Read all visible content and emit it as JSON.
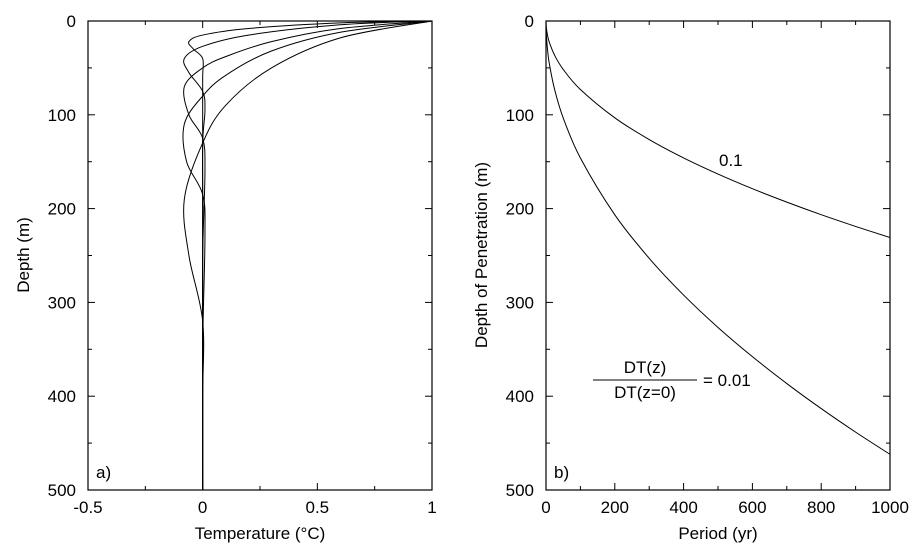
{
  "chart_data": [
    {
      "type": "line",
      "panel_label": "a)",
      "xlabel": "Temperature (°C)",
      "ylabel": "Depth (m)",
      "xlim": [
        -0.5,
        1
      ],
      "ylim": [
        0,
        500
      ],
      "y_inverted": true,
      "xticks": [
        "-0.5",
        "0",
        "0.5",
        "1"
      ],
      "yticks": [
        "0",
        "100",
        "200",
        "300",
        "400",
        "500"
      ],
      "grid": false,
      "series": [
        {
          "x": [
            1,
            0.6,
            0.2,
            0.0,
            -0.06,
            -0.04,
            0.0,
            0.0,
            0.0,
            0.0,
            0.0,
            0.0
          ],
          "y": [
            0,
            2,
            8,
            15,
            22,
            30,
            40,
            60,
            100,
            200,
            350,
            500
          ]
        },
        {
          "x": [
            1,
            0.6,
            0.2,
            0.0,
            -0.08,
            -0.06,
            0.0,
            0.01,
            0.0,
            0.0,
            0.0,
            0.0
          ],
          "y": [
            0,
            4,
            15,
            27,
            40,
            55,
            75,
            95,
            130,
            200,
            350,
            500
          ]
        },
        {
          "x": [
            1,
            0.6,
            0.3,
            0.1,
            0.0,
            -0.08,
            -0.06,
            0.0,
            0.01,
            0.0,
            0.0,
            0.0
          ],
          "y": [
            0,
            8,
            22,
            38,
            50,
            70,
            100,
            125,
            160,
            250,
            350,
            500
          ]
        },
        {
          "x": [
            1,
            0.6,
            0.3,
            0.1,
            0.0,
            -0.08,
            -0.07,
            0.0,
            0.01,
            0.0,
            0.0
          ],
          "y": [
            0,
            12,
            32,
            58,
            80,
            110,
            150,
            185,
            230,
            350,
            500
          ]
        },
        {
          "x": [
            1,
            0.6,
            0.3,
            0.1,
            0.0,
            -0.08,
            -0.06,
            0.0,
            0.0,
            0.0
          ],
          "y": [
            0,
            18,
            50,
            90,
            130,
            190,
            250,
            320,
            400,
            500
          ]
        }
      ]
    },
    {
      "type": "line",
      "panel_label": "b)",
      "xlabel": "Period (yr)",
      "ylabel": "Depth of Penetration (m)",
      "xlim": [
        0,
        1000
      ],
      "ylim": [
        0,
        500
      ],
      "y_inverted": true,
      "xticks": [
        "0",
        "200",
        "400",
        "600",
        "800",
        "1000"
      ],
      "yticks": [
        "0",
        "100",
        "200",
        "300",
        "400",
        "500"
      ],
      "grid": false,
      "series": [
        {
          "x": [
            0,
            1,
            5,
            10,
            25,
            50,
            100,
            200,
            300,
            400,
            500,
            600,
            700,
            800,
            900,
            1000
          ],
          "y": [
            0,
            7.3,
            16.3,
            23.1,
            36.5,
            51.6,
            73.0,
            103.2,
            126.4,
            146.0,
            163.2,
            178.8,
            193.1,
            206.5,
            219.0,
            230.8
          ]
        },
        {
          "x": [
            0,
            1,
            5,
            10,
            25,
            50,
            100,
            200,
            300,
            400,
            500,
            600,
            700,
            800,
            900,
            1000
          ],
          "y": [
            0,
            14.6,
            32.7,
            46.2,
            73.0,
            103.3,
            146.1,
            206.6,
            253.0,
            292.2,
            326.7,
            357.8,
            386.5,
            413.2,
            438.3,
            462.0
          ]
        }
      ],
      "annotations": {
        "upper_curve_label": "0.1",
        "fraction_numerator": "DT(z)",
        "fraction_denominator": "DT(z=0)",
        "fraction_value": "= 0.01"
      }
    }
  ]
}
